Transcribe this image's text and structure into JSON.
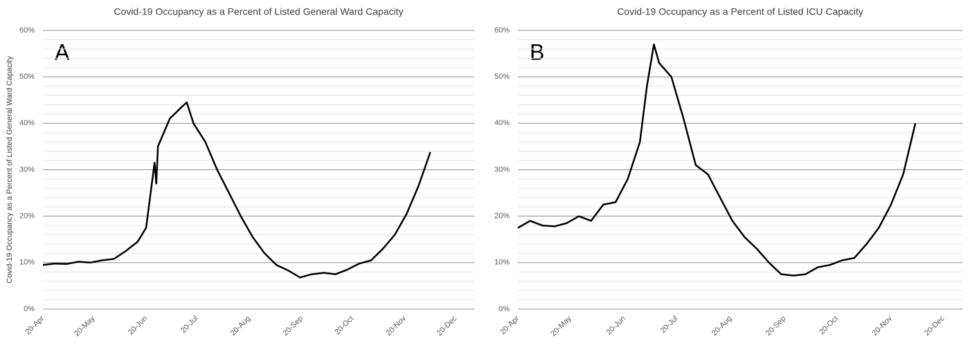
{
  "chart_data": [
    {
      "type": "line",
      "title": "Covid-19 Occupancy as a Percent of Listed General Ward Capacity",
      "y_label": "Covid-19 Occupancy as a Percent of Listed General Ward Capacity",
      "annotation": "A",
      "x": [
        "20-Apr",
        "27-Apr",
        "4-May",
        "11-May",
        "18-May",
        "25-May",
        "1-Jun",
        "8-Jun",
        "15-Jun",
        "20-Jun",
        "25-Jun",
        "26-Jun",
        "27-Jun",
        "4-Jul",
        "11-Jul",
        "14-Jul",
        "18-Jul",
        "25-Jul",
        "1-Aug",
        "8-Aug",
        "15-Aug",
        "22-Aug",
        "29-Aug",
        "5-Sep",
        "12-Sep",
        "19-Sep",
        "26-Sep",
        "3-Oct",
        "10-Oct",
        "17-Oct",
        "24-Oct",
        "31-Oct",
        "7-Nov",
        "14-Nov",
        "21-Nov",
        "28-Nov",
        "5-Dec"
      ],
      "series": [
        {
          "name": "General Ward",
          "color": "#000000",
          "values": [
            9.5,
            9.8,
            9.7,
            10.2,
            10.0,
            10.5,
            10.8,
            12.5,
            14.5,
            17.5,
            31.5,
            27,
            35,
            41,
            43.5,
            44.5,
            40,
            36,
            30,
            25,
            20,
            15.5,
            12,
            9.5,
            8.3,
            6.8,
            7.5,
            7.8,
            7.5,
            8.5,
            9.8,
            10.5,
            13,
            16,
            20.5,
            26.5,
            33.8
          ]
        }
      ],
      "xlim": [
        "20-Apr",
        "31-Dec"
      ],
      "xticks": [
        "20-Apr",
        "20-May",
        "20-Jun",
        "20-Jul",
        "20-Aug",
        "20-Sep",
        "20-Oct",
        "20-Nov",
        "20-Dec"
      ],
      "ylim": [
        0,
        60
      ],
      "yticks": [
        {
          "value": 0,
          "label": "0%"
        },
        {
          "value": 10,
          "label": "10%"
        },
        {
          "value": 20,
          "label": "20%"
        },
        {
          "value": 30,
          "label": "30%"
        },
        {
          "value": 40,
          "label": "40%"
        },
        {
          "value": 50,
          "label": "50%"
        },
        {
          "value": 60,
          "label": "60%"
        }
      ],
      "minor_yticks": [
        2,
        4,
        6,
        8,
        12,
        14,
        16,
        18,
        22,
        24,
        26,
        28,
        32,
        34,
        36,
        38,
        42,
        44,
        46,
        48,
        52,
        54,
        56,
        58
      ],
      "grid": true
    },
    {
      "type": "line",
      "title": "Covid-19 Occupancy as a Percent of Listed ICU Capacity",
      "annotation": "B",
      "x": [
        "20-Apr",
        "27-Apr",
        "4-May",
        "11-May",
        "18-May",
        "25-May",
        "1-Jun",
        "8-Jun",
        "15-Jun",
        "22-Jun",
        "29-Jun",
        "3-Jul",
        "7-Jul",
        "10-Jul",
        "17-Jul",
        "24-Jul",
        "31-Jul",
        "7-Aug",
        "14-Aug",
        "21-Aug",
        "28-Aug",
        "4-Sep",
        "11-Sep",
        "18-Sep",
        "25-Sep",
        "2-Oct",
        "9-Oct",
        "16-Oct",
        "23-Oct",
        "30-Oct",
        "6-Nov",
        "13-Nov",
        "20-Nov",
        "27-Nov",
        "4-Dec"
      ],
      "series": [
        {
          "name": "ICU",
          "color": "#000000",
          "values": [
            17.5,
            19,
            18,
            17.8,
            18.5,
            20,
            19,
            22.5,
            23,
            28,
            36,
            48,
            57,
            53,
            50,
            41,
            31,
            29,
            24,
            19,
            15.5,
            13,
            10,
            7.5,
            7.2,
            7.5,
            9,
            9.5,
            10.5,
            11,
            14,
            17.5,
            22.5,
            29,
            40
          ]
        }
      ],
      "xlim": [
        "20-Apr",
        "31-Dec"
      ],
      "xticks": [
        "20-Apr",
        "20-May",
        "20-Jun",
        "20-Jul",
        "20-Aug",
        "20-Sep",
        "20-Oct",
        "20-Nov",
        "20-Dec"
      ],
      "ylim": [
        0,
        60
      ],
      "yticks": [
        {
          "value": 0,
          "label": "0%"
        },
        {
          "value": 10,
          "label": "10%"
        },
        {
          "value": 20,
          "label": "20%"
        },
        {
          "value": 30,
          "label": "30%"
        },
        {
          "value": 40,
          "label": "40%"
        },
        {
          "value": 50,
          "label": "50%"
        },
        {
          "value": 60,
          "label": "60%"
        }
      ],
      "minor_yticks": [
        2,
        4,
        6,
        8,
        12,
        14,
        16,
        18,
        22,
        24,
        26,
        28,
        32,
        34,
        36,
        38,
        42,
        44,
        46,
        48,
        52,
        54,
        56,
        58
      ],
      "grid": true
    }
  ]
}
